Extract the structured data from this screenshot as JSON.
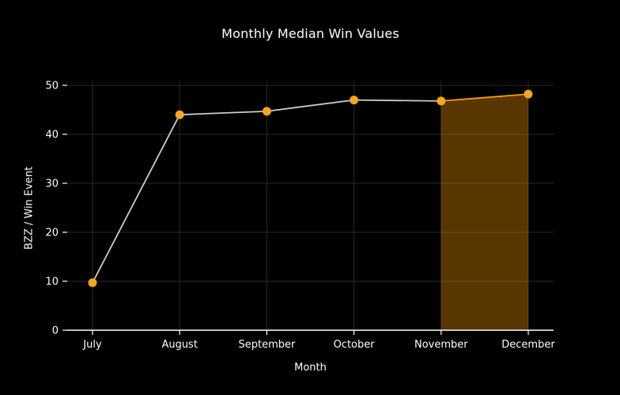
{
  "chart_data": {
    "type": "line",
    "title": "Monthly Median Win Values",
    "xlabel": "Month",
    "ylabel": "BZZ / Win Event",
    "categories": [
      "July",
      "August",
      "September",
      "October",
      "November",
      "December"
    ],
    "values": [
      9.7,
      44.0,
      44.7,
      47.0,
      46.8,
      48.2
    ],
    "ylim": [
      0,
      50
    ],
    "yticks": [
      0,
      10,
      20,
      30,
      40,
      50
    ],
    "grid": true,
    "legend": "none",
    "colors": {
      "background": "#000000",
      "grid": "#2a2a2a",
      "axis": "#ffffff",
      "text": "#ffffff",
      "line_default": "#cccccc",
      "line_highlight": "#ff9d00",
      "marker": "#f5a623",
      "band_fill": "#ff9800",
      "band_opacity": "0.35"
    },
    "highlight_region": {
      "from": "November",
      "to": "December"
    }
  }
}
